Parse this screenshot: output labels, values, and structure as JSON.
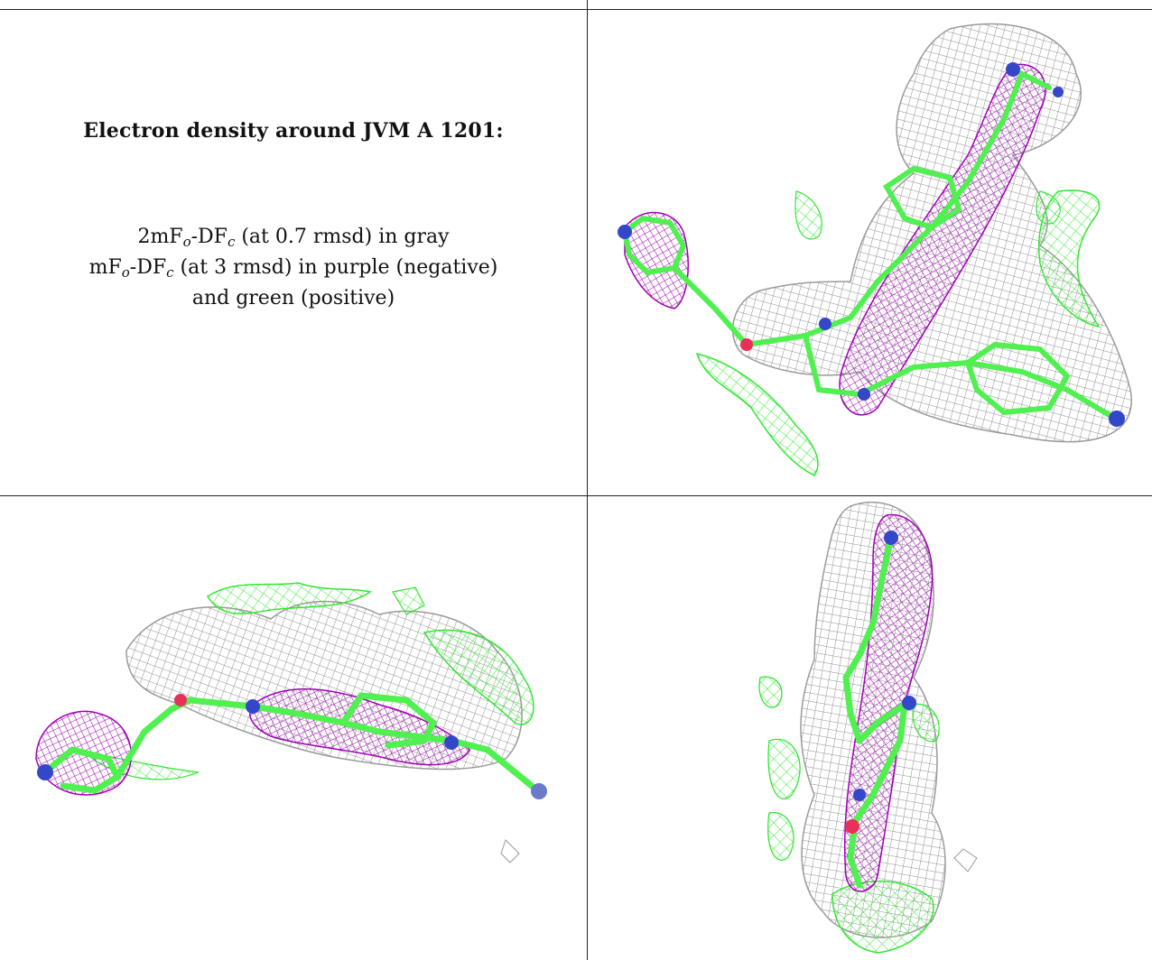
{
  "caption": {
    "title": "Electron density around JVM A 1201:",
    "line1": {
      "prefix": "2mF",
      "sub1": "o",
      "mid": "-DF",
      "sub2": "c",
      "suffix": " (at 0.7 rmsd) in gray"
    },
    "line2": {
      "prefix": "mF",
      "sub1": "o",
      "mid": "-DF",
      "sub2": "c",
      "suffix": " (at 3 rmsd) in purple (negative)"
    },
    "line3": "and green (positive)"
  },
  "colors": {
    "map_2fofc": "#8f8f8f",
    "map_fofc_negative": "#a000b4",
    "map_fofc_positive": "#33e633",
    "carbon": "#4ff04f",
    "nitrogen": "#3347c8",
    "oxygen": "#e8305a"
  },
  "panels": [
    {
      "name": "top-right-view"
    },
    {
      "name": "bottom-left-view"
    },
    {
      "name": "bottom-right-view"
    }
  ]
}
